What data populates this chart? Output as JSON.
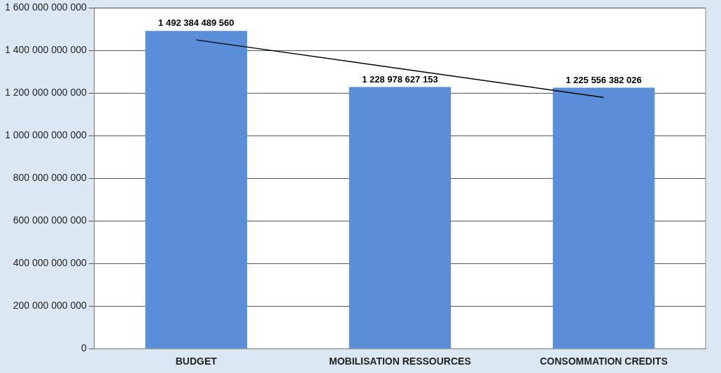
{
  "chart_data": {
    "type": "bar",
    "categories": [
      "BUDGET",
      "MOBILISATION RESSOURCES",
      "CONSOMMATION CREDITS"
    ],
    "series": [
      {
        "color": "#5b8ed8",
        "values": [
          1492384489560,
          1228978627153,
          1225556382026
        ],
        "value_labels": [
          "1 492 384 489 560",
          "1 228 978 627 153",
          "1 225 556 382 026"
        ]
      },
      {
        "type": "line",
        "color": "#000000",
        "x": [
          "BUDGET",
          "MOBILISATION RESSOURCES",
          "CONSOMMATION CREDITS"
        ],
        "values": [
          1450000000000,
          1315000000000,
          1180000000000
        ]
      }
    ],
    "ylim": [
      0,
      1600000000000
    ],
    "yticks": [
      {
        "value": 0,
        "label": "0"
      },
      {
        "value": 200000000000,
        "label": "200 000 000 000"
      },
      {
        "value": 400000000000,
        "label": "400 000 000 000"
      },
      {
        "value": 600000000000,
        "label": "600 000 000 000"
      },
      {
        "value": 800000000000,
        "label": "800 000 000 000"
      },
      {
        "value": 1000000000000,
        "label": "1 000 000 000 000"
      },
      {
        "value": 1200000000000,
        "label": "1 200 000 000 000"
      },
      {
        "value": 1400000000000,
        "label": "1 400 000 000 000"
      },
      {
        "value": 1600000000000,
        "label": "1 600 000 000 000"
      }
    ],
    "grid": "y",
    "marker": "none"
  }
}
